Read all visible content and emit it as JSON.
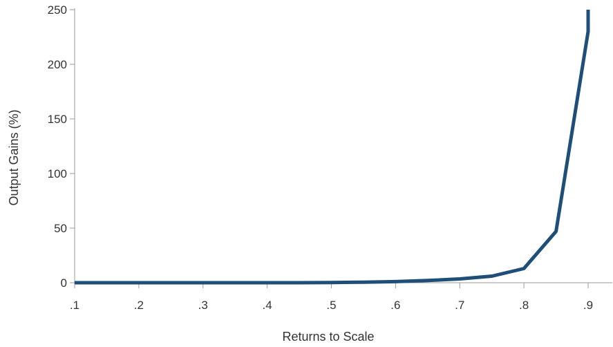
{
  "chart_data": {
    "type": "line",
    "title": "",
    "xlabel": "Returns to Scale",
    "ylabel": "Output Gains (%)",
    "xlim": [
      0.1,
      0.9
    ],
    "ylim": [
      0,
      250
    ],
    "x_ticks": [
      {
        "value": 0.1,
        "label": ".1"
      },
      {
        "value": 0.2,
        "label": ".2"
      },
      {
        "value": 0.3,
        "label": ".3"
      },
      {
        "value": 0.4,
        "label": ".4"
      },
      {
        "value": 0.5,
        "label": ".5"
      },
      {
        "value": 0.6,
        "label": ".6"
      },
      {
        "value": 0.7,
        "label": ".7"
      },
      {
        "value": 0.8,
        "label": ".8"
      },
      {
        "value": 0.9,
        "label": ".9"
      }
    ],
    "y_ticks": [
      {
        "value": 0,
        "label": "0"
      },
      {
        "value": 50,
        "label": "50"
      },
      {
        "value": 100,
        "label": "100"
      },
      {
        "value": 150,
        "label": "150"
      },
      {
        "value": 200,
        "label": "200"
      },
      {
        "value": 250,
        "label": "250"
      }
    ],
    "grid": false,
    "legend": "none",
    "series": [
      {
        "color": "#1f4e79",
        "x": [
          0.1,
          0.15,
          0.2,
          0.25,
          0.3,
          0.35,
          0.4,
          0.45,
          0.5,
          0.55,
          0.6,
          0.65,
          0.7,
          0.75,
          0.8,
          0.85,
          0.9,
          0.9
        ],
        "y": [
          0,
          0,
          0,
          0,
          0,
          0,
          0,
          0,
          0.2,
          0.5,
          1,
          2,
          3.5,
          6,
          13,
          47,
          230,
          250
        ]
      }
    ]
  }
}
